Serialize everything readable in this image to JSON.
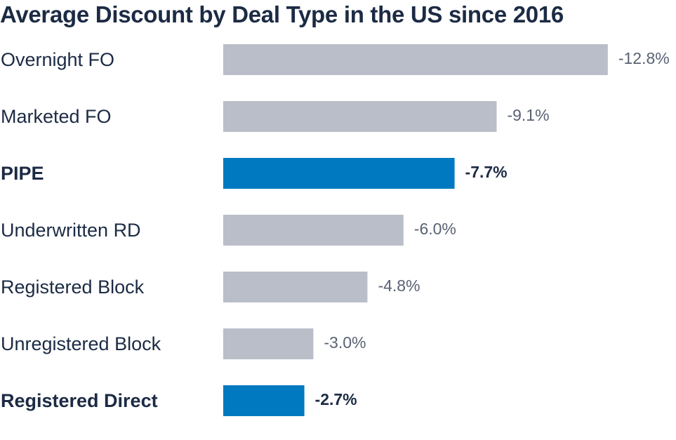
{
  "chart_data": {
    "type": "bar",
    "orientation": "horizontal",
    "title": "Average Discount by Deal Type in the US since 2016",
    "categories": [
      "Overnight FO",
      "Marketed FO",
      "PIPE",
      "Underwritten RD",
      "Registered Block",
      "Unregistered Block",
      "Registered Direct"
    ],
    "values": [
      -12.8,
      -9.1,
      -7.7,
      -6.0,
      -4.8,
      -3.0,
      -2.7
    ],
    "value_labels": [
      "-12.8%",
      "-9.1%",
      "-7.7%",
      "-6.0%",
      "-4.8%",
      "-3.0%",
      "-2.7%"
    ],
    "highlighted": [
      false,
      false,
      true,
      false,
      false,
      false,
      true
    ],
    "xlabel": "",
    "ylabel": "",
    "grid": false,
    "legend": "none",
    "colors": {
      "default_bar": "#b9bec8",
      "highlight_bar": "#0079c1",
      "default_label": "#1c2b44",
      "default_value": "#5a6273",
      "highlight_text": "#1c2b44"
    }
  }
}
